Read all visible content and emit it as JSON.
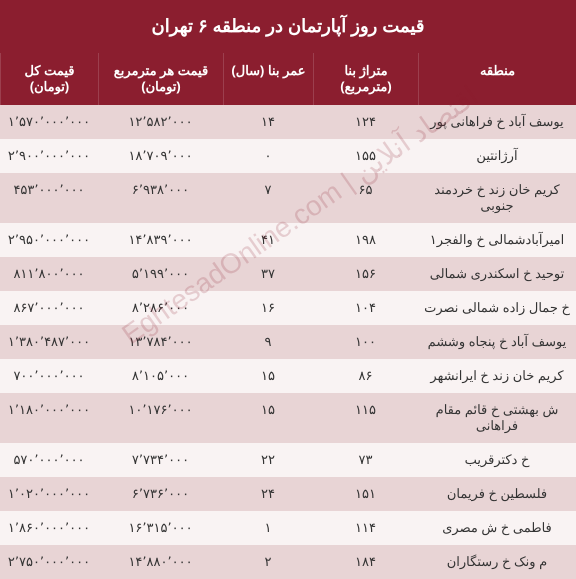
{
  "title": "قیمت روز آپارتمان در منطقه ۶ تهران",
  "watermark": "EghtesadOnline.com | اقتصاد آنلاین",
  "columns": {
    "region": "منطقه",
    "area": "متراژ بنا (مترمربع)",
    "age": "عمر بنا (سال)",
    "ppsm": "قیمت هر مترمربع (تومان)",
    "total": "قیمت کل (تومان)"
  },
  "rows": [
    {
      "region": "یوسف آباد خ فراهانی پور",
      "area": "۱۲۴",
      "age": "۱۴",
      "ppsm": "۱۲٬۵۸۲٬۰۰۰",
      "total": "۱٬۵۷۰٬۰۰۰٬۰۰۰"
    },
    {
      "region": "آرژانتین",
      "area": "۱۵۵",
      "age": "۰",
      "ppsm": "۱۸٬۷۰۹٬۰۰۰",
      "total": "۲٬۹۰۰٬۰۰۰٬۰۰۰"
    },
    {
      "region": "کریم خان زند خ خردمند جنوبی",
      "area": "۶۵",
      "age": "۷",
      "ppsm": "۶٬۹۳۸٬۰۰۰",
      "total": "۴۵۳٬۰۰۰٬۰۰۰"
    },
    {
      "region": "امیرآبادشمالی خ والفجر۱",
      "area": "۱۹۸",
      "age": "۴۱",
      "ppsm": "۱۴٬۸۳۹٬۰۰۰",
      "total": "۲٬۹۵۰٬۰۰۰٬۰۰۰"
    },
    {
      "region": "توحید خ اسکندری شمالی",
      "area": "۱۵۶",
      "age": "۳۷",
      "ppsm": "۵٬۱۹۹٬۰۰۰",
      "total": "۸۱۱٬۸۰۰٬۰۰۰"
    },
    {
      "region": "خ جمال زاده شمالی نصرت",
      "area": "۱۰۴",
      "age": "۱۶",
      "ppsm": "۸٬۲۸۶٬۰۰۰",
      "total": "۸۶۷٬۰۰۰٬۰۰۰"
    },
    {
      "region": "یوسف آباد خ پنجاه وششم",
      "area": "۱۰۰",
      "age": "۹",
      "ppsm": "۱۳٬۷۸۴٬۰۰۰",
      "total": "۱٬۳۸۰٬۴۸۷٬۰۰۰"
    },
    {
      "region": "کریم خان زند خ ایرانشهر",
      "area": "۸۶",
      "age": "۱۵",
      "ppsm": "۸٬۱۰۵٬۰۰۰",
      "total": "۷۰۰٬۰۰۰٬۰۰۰"
    },
    {
      "region": "ش بهشتی خ قائم مقام فراهانی",
      "area": "۱۱۵",
      "age": "۱۵",
      "ppsm": "۱۰٬۱۷۶٬۰۰۰",
      "total": "۱٬۱۸۰٬۰۰۰٬۰۰۰"
    },
    {
      "region": "خ دکترقریب",
      "area": "۷۳",
      "age": "۲۲",
      "ppsm": "۷٬۷۳۴٬۰۰۰",
      "total": "۵۷۰٬۰۰۰٬۰۰۰"
    },
    {
      "region": "فلسطین خ فریمان",
      "area": "۱۵۱",
      "age": "۲۴",
      "ppsm": "۶٬۷۳۶٬۰۰۰",
      "total": "۱٬۰۲۰٬۰۰۰٬۰۰۰"
    },
    {
      "region": "فاطمی خ ش مصری",
      "area": "۱۱۴",
      "age": "۱",
      "ppsm": "۱۶٬۳۱۵٬۰۰۰",
      "total": "۱٬۸۶۰٬۰۰۰٬۰۰۰"
    },
    {
      "region": "م ونک خ رستگاران",
      "area": "۱۸۴",
      "age": "۲",
      "ppsm": "۱۴٬۸۸۰٬۰۰۰",
      "total": "۲٬۷۵۰٬۰۰۰٬۰۰۰"
    }
  ],
  "style": {
    "header_bg": "#8b1e2f",
    "header_fg": "#ffffff",
    "row_odd_bg": "#e8d4d5",
    "row_even_bg": "#f9f3f3",
    "text_color": "#333333",
    "col_widths": {
      "region": 158,
      "area": 105,
      "age": 90,
      "ppsm": 125,
      "total": 98
    },
    "title_fontsize": 18,
    "header_fontsize": 13,
    "cell_fontsize": 13
  }
}
